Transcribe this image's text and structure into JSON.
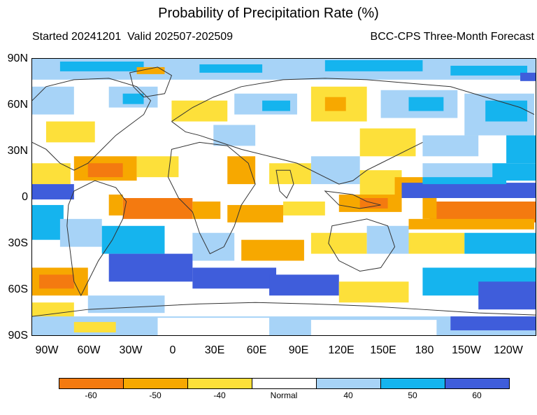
{
  "title": "Probability of Precipitation Rate (%)",
  "subtitle_left": "Started 20241201  Valid 202507-202509",
  "subtitle_right": "BCC-CPS Three-Month Forecast",
  "y_axis_labels": [
    "90N",
    "60N",
    "30N",
    "0",
    "30S",
    "60S",
    "90S"
  ],
  "x_axis_labels": [
    "90W",
    "60W",
    "30W",
    "0",
    "30E",
    "60E",
    "90E",
    "120E",
    "150E",
    "180",
    "150W",
    "120W"
  ],
  "colorbar": {
    "labels": [
      "-60",
      "-50",
      "-40",
      "Normal",
      "40",
      "50",
      "60"
    ],
    "colors": [
      "#f47a10",
      "#f7a800",
      "#fde03a",
      "#ffffff",
      "#a7d3f7",
      "#15b4ee",
      "#3f5ddb"
    ]
  },
  "colors": {
    "dry_strong": "#f47a10",
    "dry_mid": "#f7a800",
    "dry_weak": "#fde03a",
    "wet_weak": "#a7d3f7",
    "wet_mid": "#15b4ee",
    "wet_strong": "#3f5ddb",
    "coastline": "#333333"
  }
}
